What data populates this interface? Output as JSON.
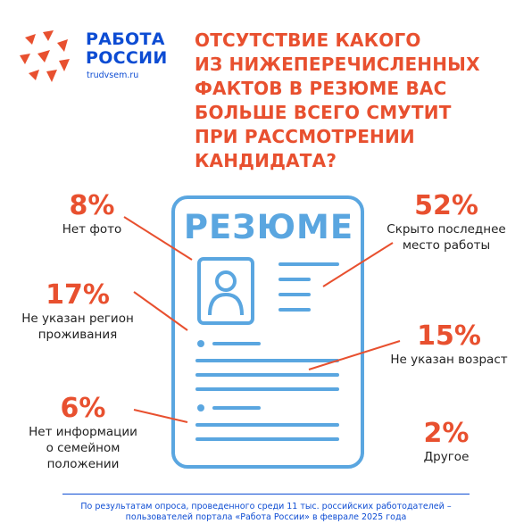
{
  "brand": {
    "line1": "РАБОТА",
    "line2": "РОССИИ",
    "url": "trudvsem.ru"
  },
  "title_lines": [
    "ОТСУТСТВИЕ КАКОГО",
    "ИЗ НИЖЕПЕРЕЧИСЛЕННЫХ",
    "ФАКТОВ В РЕЗЮМЕ ВАС",
    "БОЛЬШЕ ВСЕГО СМУТИТ",
    "ПРИ РАССМОТРЕНИИ",
    "КАНДИДАТА?"
  ],
  "resume_heading": "РЕЗЮМЕ",
  "colors": {
    "accent": "#e8502f",
    "primary": "#0d4cd3",
    "icon": "#5aa6e0"
  },
  "chart_data": {
    "type": "table",
    "title": "ОТСУТСТВИЕ КАКОГО ИЗ НИЖЕПЕРЕЧИСЛЕННЫХ ФАКТОВ В РЕЗЮМЕ ВАС БОЛЬШЕ ВСЕГО СМУТИТ ПРИ РАССМОТРЕНИИ КАНДИДАТА?",
    "unit": "%",
    "items": [
      {
        "value": 8,
        "display": "8%",
        "label_lines": [
          "Нет фото"
        ]
      },
      {
        "value": 17,
        "display": "17%",
        "label_lines": [
          "Не указан регион",
          "проживания"
        ]
      },
      {
        "value": 6,
        "display": "6%",
        "label_lines": [
          "Нет информации",
          "о семейном",
          "положении"
        ]
      },
      {
        "value": 52,
        "display": "52%",
        "label_lines": [
          "Скрыто последнее",
          "место работы"
        ]
      },
      {
        "value": 15,
        "display": "15%",
        "label_lines": [
          "Не указан возраст"
        ]
      },
      {
        "value": 2,
        "display": "2%",
        "label_lines": [
          "Другое"
        ]
      }
    ]
  },
  "footer": {
    "line1": "По результатам опроса, проведенного среди 11 тыс. российских работодателей –",
    "line2": "пользователей портала «Работа России» в феврале 2025 года"
  }
}
